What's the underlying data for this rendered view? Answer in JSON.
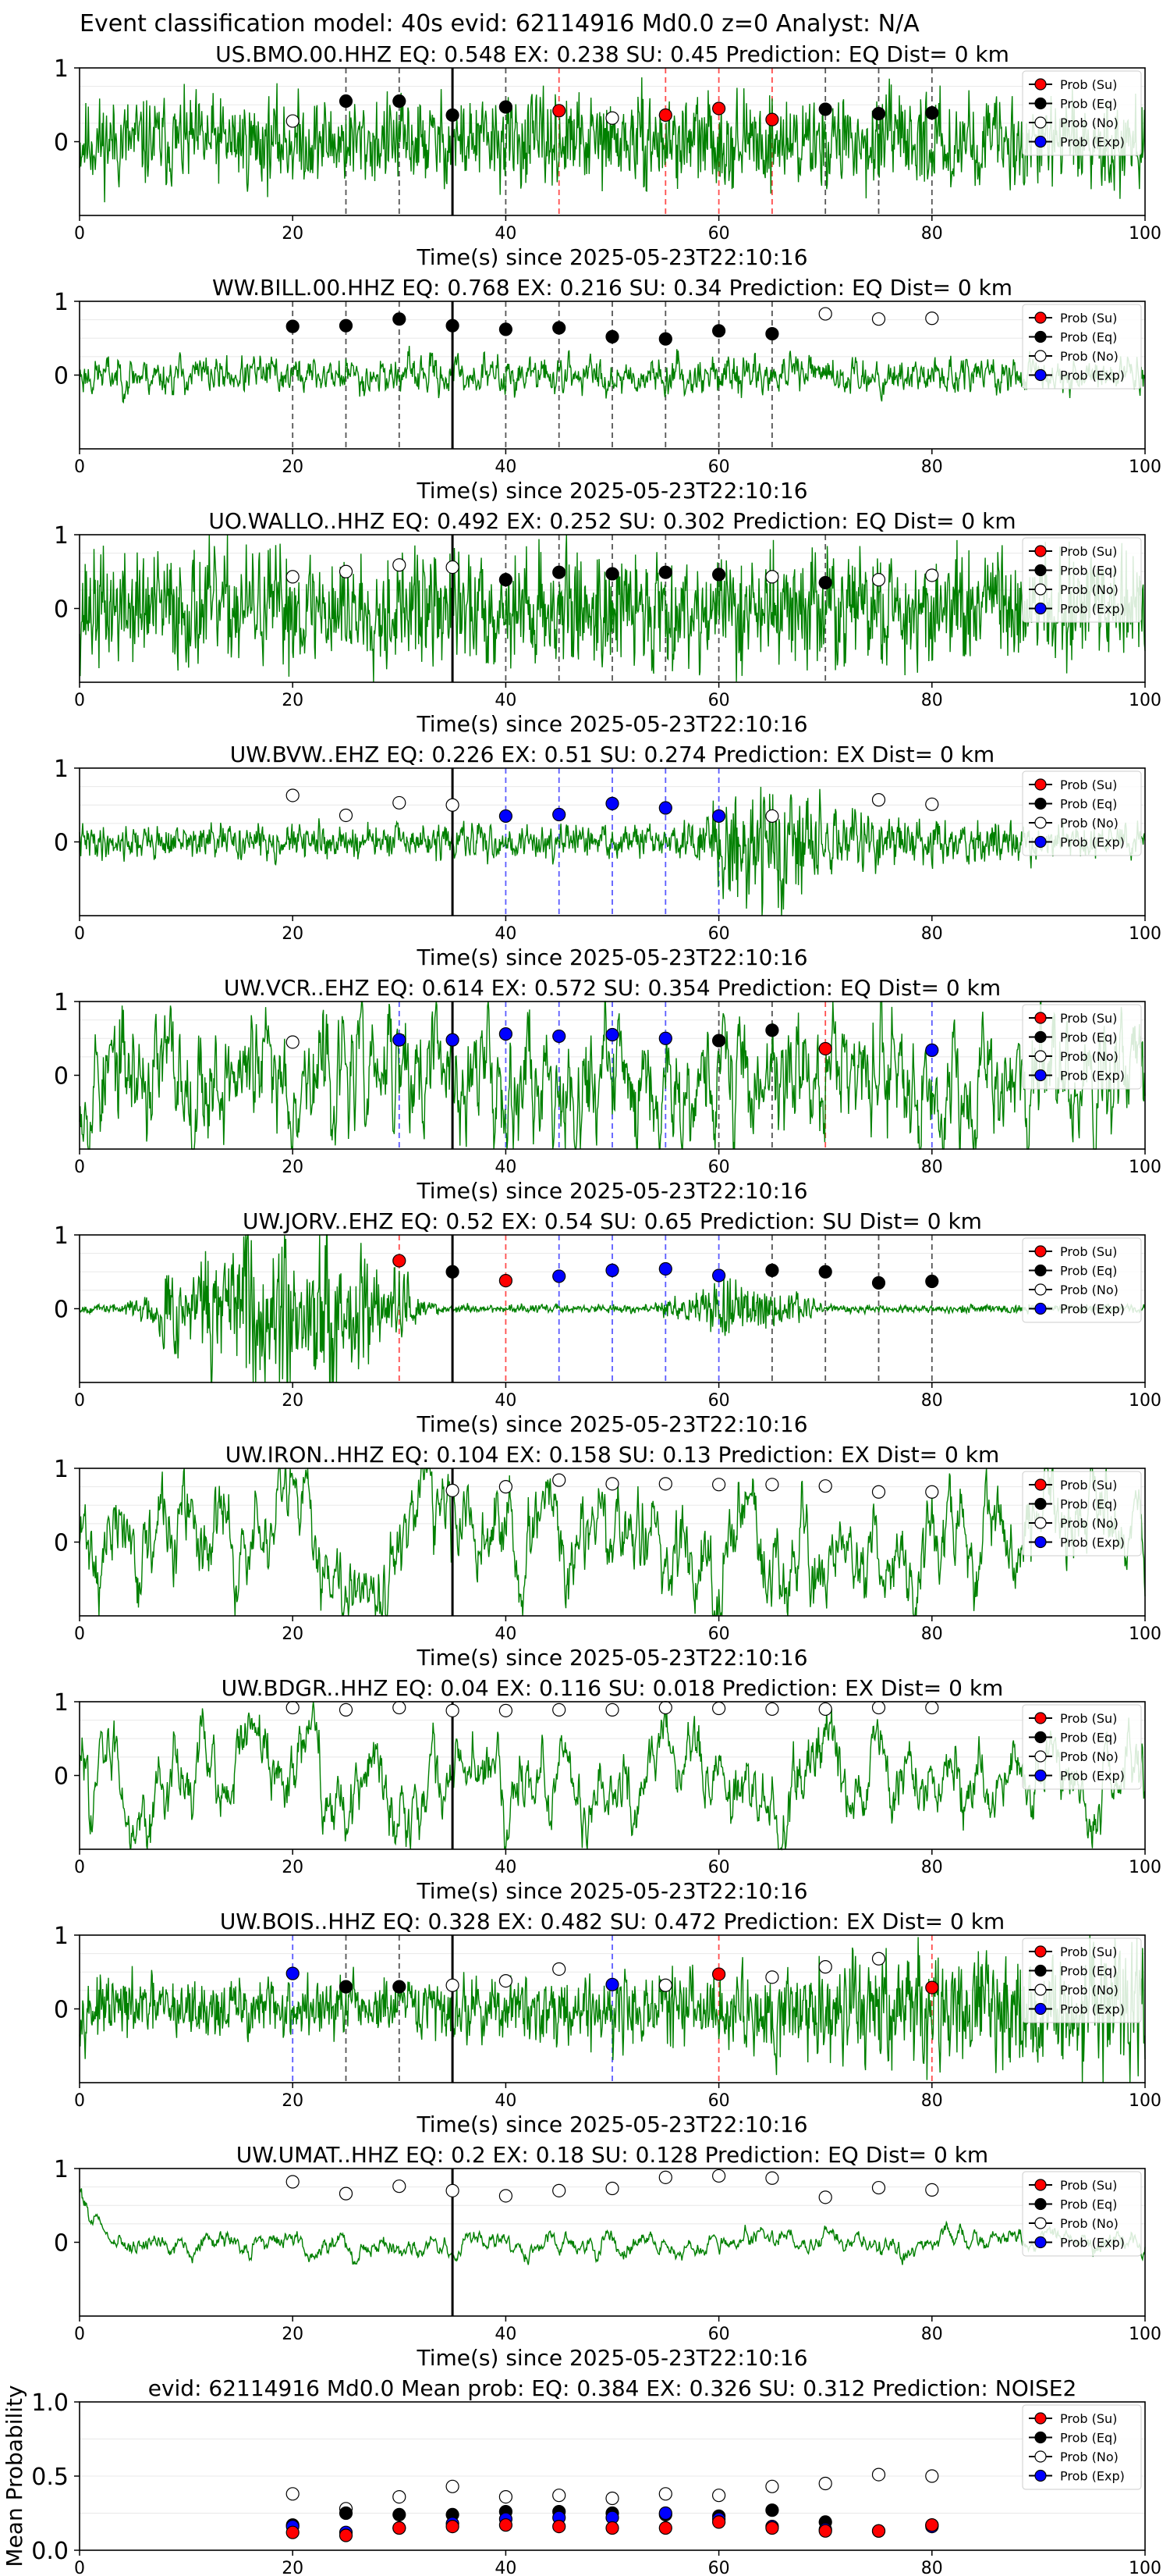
{
  "figure": {
    "title": "Event classification model: 40s evid: 62114916 Md0.0 z=0 Analyst: N/A"
  },
  "colors": {
    "trace": "#008000",
    "su": "#ff0000",
    "eq": "#000000",
    "no": "#ffffff",
    "exp": "#0000ff",
    "su_line": "#ff4d4d",
    "eq_line": "#555555",
    "exp_line": "#5b5bff",
    "origin_line": "#000000"
  },
  "legend": {
    "entries": [
      "Prob (Su)",
      "Prob (Eq)",
      "Prob (No)",
      "Prob (Exp)"
    ],
    "placement": "upper-right"
  },
  "chart_data": [
    {
      "type": "line",
      "title": "US.BMO.00.HHZ   EQ: 0.548  EX: 0.238  SU: 0.45   Prediction: EQ    Dist= 0 km",
      "xlabel": "Time(s) since 2025-05-23T22:10:16",
      "xlim": [
        0,
        100
      ],
      "ylim": [
        -1,
        1
      ],
      "xticks": [
        "0",
        "20",
        "40",
        "60",
        "80",
        "100"
      ],
      "yticks": [
        "1",
        "0"
      ],
      "origin_time": 35,
      "trace": {
        "amp": 0.32,
        "smooth": 0.25,
        "seed": 11,
        "envelope": "flat"
      },
      "points": [
        {
          "t": 20,
          "p": 0.28,
          "cls": "no"
        },
        {
          "t": 25,
          "p": 0.55,
          "cls": "eq"
        },
        {
          "t": 30,
          "p": 0.55,
          "cls": "eq"
        },
        {
          "t": 35,
          "p": 0.36,
          "cls": "eq"
        },
        {
          "t": 40,
          "p": 0.47,
          "cls": "eq"
        },
        {
          "t": 45,
          "p": 0.42,
          "cls": "su"
        },
        {
          "t": 50,
          "p": 0.32,
          "cls": "no"
        },
        {
          "t": 55,
          "p": 0.36,
          "cls": "su"
        },
        {
          "t": 60,
          "p": 0.45,
          "cls": "su"
        },
        {
          "t": 65,
          "p": 0.3,
          "cls": "su"
        },
        {
          "t": 70,
          "p": 0.44,
          "cls": "eq"
        },
        {
          "t": 75,
          "p": 0.38,
          "cls": "eq"
        },
        {
          "t": 80,
          "p": 0.39,
          "cls": "eq"
        }
      ]
    },
    {
      "type": "line",
      "title": "WW.BILL.00.HHZ   EQ: 0.768  EX: 0.216  SU: 0.34   Prediction: EQ    Dist= 0 km",
      "xlabel": "Time(s) since 2025-05-23T22:10:16",
      "xlim": [
        0,
        100
      ],
      "ylim": [
        -1,
        1
      ],
      "xticks": [
        "0",
        "20",
        "40",
        "60",
        "80",
        "100"
      ],
      "yticks": [
        "1",
        "0"
      ],
      "origin_time": 35,
      "trace": {
        "amp": 0.14,
        "smooth": 0.6,
        "seed": 23,
        "envelope": "flat"
      },
      "points": [
        {
          "t": 20,
          "p": 0.66,
          "cls": "eq"
        },
        {
          "t": 25,
          "p": 0.67,
          "cls": "eq"
        },
        {
          "t": 30,
          "p": 0.76,
          "cls": "eq"
        },
        {
          "t": 35,
          "p": 0.67,
          "cls": "eq"
        },
        {
          "t": 40,
          "p": 0.62,
          "cls": "eq"
        },
        {
          "t": 45,
          "p": 0.64,
          "cls": "eq"
        },
        {
          "t": 50,
          "p": 0.52,
          "cls": "eq"
        },
        {
          "t": 55,
          "p": 0.49,
          "cls": "eq"
        },
        {
          "t": 60,
          "p": 0.6,
          "cls": "eq"
        },
        {
          "t": 65,
          "p": 0.56,
          "cls": "eq"
        },
        {
          "t": 70,
          "p": 0.83,
          "cls": "no"
        },
        {
          "t": 75,
          "p": 0.76,
          "cls": "no"
        },
        {
          "t": 80,
          "p": 0.77,
          "cls": "no"
        }
      ]
    },
    {
      "type": "line",
      "title": "UO.WALLO..HHZ   EQ: 0.492  EX: 0.252  SU: 0.302   Prediction: EQ    Dist= 0 km",
      "xlabel": "Time(s) since 2025-05-23T22:10:16",
      "xlim": [
        0,
        100
      ],
      "ylim": [
        -1,
        1
      ],
      "xticks": [
        "0",
        "20",
        "40",
        "60",
        "80",
        "100"
      ],
      "yticks": [
        "1",
        "0"
      ],
      "origin_time": 35,
      "trace": {
        "amp": 0.42,
        "smooth": 0.2,
        "seed": 37,
        "envelope": "flat"
      },
      "points": [
        {
          "t": 20,
          "p": 0.43,
          "cls": "no"
        },
        {
          "t": 25,
          "p": 0.5,
          "cls": "no"
        },
        {
          "t": 30,
          "p": 0.59,
          "cls": "no"
        },
        {
          "t": 35,
          "p": 0.56,
          "cls": "no"
        },
        {
          "t": 40,
          "p": 0.39,
          "cls": "eq"
        },
        {
          "t": 45,
          "p": 0.49,
          "cls": "eq"
        },
        {
          "t": 50,
          "p": 0.47,
          "cls": "eq"
        },
        {
          "t": 55,
          "p": 0.49,
          "cls": "eq"
        },
        {
          "t": 60,
          "p": 0.46,
          "cls": "eq"
        },
        {
          "t": 65,
          "p": 0.43,
          "cls": "no"
        },
        {
          "t": 70,
          "p": 0.35,
          "cls": "eq"
        },
        {
          "t": 75,
          "p": 0.39,
          "cls": "no"
        },
        {
          "t": 80,
          "p": 0.45,
          "cls": "no"
        }
      ]
    },
    {
      "type": "line",
      "title": "UW.BVW..EHZ   EQ: 0.226  EX: 0.51  SU: 0.274   Prediction: EX    Dist= 0 km",
      "xlabel": "Time(s) since 2025-05-23T22:10:16",
      "xlim": [
        0,
        100
      ],
      "ylim": [
        -1,
        1
      ],
      "xticks": [
        "0",
        "20",
        "40",
        "60",
        "80",
        "100"
      ],
      "yticks": [
        "1",
        "0"
      ],
      "origin_time": 35,
      "trace": {
        "amp": 0.12,
        "smooth": 0.35,
        "seed": 41,
        "envelope": "burst",
        "burst_start": 57,
        "burst_peak": 64,
        "burst_gain": 5
      },
      "points": [
        {
          "t": 20,
          "p": 0.63,
          "cls": "no"
        },
        {
          "t": 25,
          "p": 0.36,
          "cls": "no"
        },
        {
          "t": 30,
          "p": 0.53,
          "cls": "no"
        },
        {
          "t": 35,
          "p": 0.5,
          "cls": "no"
        },
        {
          "t": 40,
          "p": 0.35,
          "cls": "exp"
        },
        {
          "t": 45,
          "p": 0.37,
          "cls": "exp"
        },
        {
          "t": 50,
          "p": 0.52,
          "cls": "exp"
        },
        {
          "t": 55,
          "p": 0.46,
          "cls": "exp"
        },
        {
          "t": 60,
          "p": 0.35,
          "cls": "exp"
        },
        {
          "t": 65,
          "p": 0.35,
          "cls": "no"
        },
        {
          "t": 75,
          "p": 0.57,
          "cls": "no"
        },
        {
          "t": 80,
          "p": 0.51,
          "cls": "no"
        }
      ]
    },
    {
      "type": "line",
      "title": "UW.VCR..EHZ   EQ: 0.614  EX: 0.572  SU: 0.354   Prediction: EQ    Dist= 0 km",
      "xlabel": "Time(s) since 2025-05-23T22:10:16",
      "xlim": [
        0,
        100
      ],
      "ylim": [
        -1,
        1
      ],
      "xticks": [
        "0",
        "20",
        "40",
        "60",
        "80",
        "100"
      ],
      "yticks": [
        "1",
        "0"
      ],
      "origin_time": 35,
      "trace": {
        "amp": 0.5,
        "smooth": 0.75,
        "seed": 53,
        "envelope": "flat"
      },
      "points": [
        {
          "t": 20,
          "p": 0.45,
          "cls": "no"
        },
        {
          "t": 30,
          "p": 0.48,
          "cls": "exp"
        },
        {
          "t": 35,
          "p": 0.48,
          "cls": "exp"
        },
        {
          "t": 40,
          "p": 0.56,
          "cls": "exp"
        },
        {
          "t": 45,
          "p": 0.53,
          "cls": "exp"
        },
        {
          "t": 50,
          "p": 0.55,
          "cls": "exp"
        },
        {
          "t": 55,
          "p": 0.5,
          "cls": "exp"
        },
        {
          "t": 60,
          "p": 0.47,
          "cls": "eq"
        },
        {
          "t": 65,
          "p": 0.61,
          "cls": "eq"
        },
        {
          "t": 70,
          "p": 0.36,
          "cls": "su"
        },
        {
          "t": 80,
          "p": 0.34,
          "cls": "exp"
        }
      ]
    },
    {
      "type": "line",
      "title": "UW.JORV..EHZ   EQ: 0.52  EX: 0.54  SU: 0.65   Prediction: SU    Dist= 0 km",
      "xlabel": "Time(s) since 2025-05-23T22:10:16",
      "xlim": [
        0,
        100
      ],
      "ylim": [
        -1,
        1
      ],
      "xticks": [
        "0",
        "20",
        "40",
        "60",
        "80",
        "100"
      ],
      "yticks": [
        "1",
        "0"
      ],
      "origin_time": 35,
      "trace": {
        "amp": 0.03,
        "smooth": 0.25,
        "seed": 67,
        "envelope": "jorv"
      },
      "points": [
        {
          "t": 30,
          "p": 0.65,
          "cls": "su"
        },
        {
          "t": 35,
          "p": 0.5,
          "cls": "eq"
        },
        {
          "t": 40,
          "p": 0.38,
          "cls": "su"
        },
        {
          "t": 45,
          "p": 0.44,
          "cls": "exp"
        },
        {
          "t": 50,
          "p": 0.52,
          "cls": "exp"
        },
        {
          "t": 55,
          "p": 0.54,
          "cls": "exp"
        },
        {
          "t": 60,
          "p": 0.45,
          "cls": "exp"
        },
        {
          "t": 65,
          "p": 0.52,
          "cls": "eq"
        },
        {
          "t": 70,
          "p": 0.5,
          "cls": "eq"
        },
        {
          "t": 75,
          "p": 0.35,
          "cls": "eq"
        },
        {
          "t": 80,
          "p": 0.37,
          "cls": "eq"
        }
      ]
    },
    {
      "type": "line",
      "title": "UW.IRON..HHZ   EQ: 0.104  EX: 0.158  SU: 0.13   Prediction: EX    Dist= 0 km",
      "xlabel": "Time(s) since 2025-05-23T22:10:16",
      "xlim": [
        0,
        100
      ],
      "ylim": [
        -1,
        1
      ],
      "xticks": [
        "0",
        "20",
        "40",
        "60",
        "80",
        "100"
      ],
      "yticks": [
        "1",
        "0"
      ],
      "origin_time": 35,
      "trace": {
        "amp": 0.5,
        "smooth": 0.9,
        "seed": 71,
        "envelope": "flat"
      },
      "points": [
        {
          "t": 35,
          "p": 0.7,
          "cls": "no"
        },
        {
          "t": 40,
          "p": 0.75,
          "cls": "no"
        },
        {
          "t": 45,
          "p": 0.84,
          "cls": "no"
        },
        {
          "t": 50,
          "p": 0.79,
          "cls": "no"
        },
        {
          "t": 55,
          "p": 0.79,
          "cls": "no"
        },
        {
          "t": 60,
          "p": 0.78,
          "cls": "no"
        },
        {
          "t": 65,
          "p": 0.78,
          "cls": "no"
        },
        {
          "t": 70,
          "p": 0.76,
          "cls": "no"
        },
        {
          "t": 75,
          "p": 0.68,
          "cls": "no"
        },
        {
          "t": 80,
          "p": 0.68,
          "cls": "no"
        }
      ]
    },
    {
      "type": "line",
      "title": "UW.BDGR..HHZ   EQ: 0.04  EX: 0.116  SU: 0.018   Prediction: EX    Dist= 0 km",
      "xlabel": "Time(s) since 2025-05-23T22:10:16",
      "xlim": [
        0,
        100
      ],
      "ylim": [
        -1,
        1
      ],
      "xticks": [
        "0",
        "20",
        "40",
        "60",
        "80",
        "100"
      ],
      "yticks": [
        "1",
        "0"
      ],
      "origin_time": 35,
      "trace": {
        "amp": 0.45,
        "smooth": 0.92,
        "seed": 83,
        "envelope": "flat"
      },
      "points": [
        {
          "t": 20,
          "p": 0.92,
          "cls": "no"
        },
        {
          "t": 25,
          "p": 0.89,
          "cls": "no"
        },
        {
          "t": 30,
          "p": 0.92,
          "cls": "no"
        },
        {
          "t": 35,
          "p": 0.88,
          "cls": "no"
        },
        {
          "t": 40,
          "p": 0.88,
          "cls": "no"
        },
        {
          "t": 45,
          "p": 0.89,
          "cls": "no"
        },
        {
          "t": 50,
          "p": 0.89,
          "cls": "no"
        },
        {
          "t": 55,
          "p": 0.92,
          "cls": "no"
        },
        {
          "t": 60,
          "p": 0.91,
          "cls": "no"
        },
        {
          "t": 65,
          "p": 0.9,
          "cls": "no"
        },
        {
          "t": 70,
          "p": 0.9,
          "cls": "no"
        },
        {
          "t": 75,
          "p": 0.92,
          "cls": "no"
        },
        {
          "t": 80,
          "p": 0.92,
          "cls": "no"
        }
      ]
    },
    {
      "type": "line",
      "title": "UW.BOIS..HHZ   EQ: 0.328  EX: 0.482  SU: 0.472   Prediction: EX    Dist= 0 km",
      "xlabel": "Time(s) since 2025-05-23T22:10:16",
      "xlim": [
        0,
        100
      ],
      "ylim": [
        -1,
        1
      ],
      "xticks": [
        "0",
        "20",
        "40",
        "60",
        "80",
        "100"
      ],
      "yticks": [
        "1",
        "0"
      ],
      "origin_time": 35,
      "trace": {
        "amp": 0.22,
        "smooth": 0.3,
        "seed": 97,
        "envelope": "ramp"
      },
      "points": [
        {
          "t": 20,
          "p": 0.48,
          "cls": "exp"
        },
        {
          "t": 25,
          "p": 0.3,
          "cls": "eq"
        },
        {
          "t": 30,
          "p": 0.3,
          "cls": "eq"
        },
        {
          "t": 35,
          "p": 0.32,
          "cls": "no"
        },
        {
          "t": 40,
          "p": 0.38,
          "cls": "no"
        },
        {
          "t": 45,
          "p": 0.54,
          "cls": "no"
        },
        {
          "t": 50,
          "p": 0.33,
          "cls": "exp"
        },
        {
          "t": 55,
          "p": 0.32,
          "cls": "no"
        },
        {
          "t": 60,
          "p": 0.47,
          "cls": "su"
        },
        {
          "t": 65,
          "p": 0.43,
          "cls": "no"
        },
        {
          "t": 70,
          "p": 0.57,
          "cls": "no"
        },
        {
          "t": 75,
          "p": 0.68,
          "cls": "no"
        },
        {
          "t": 80,
          "p": 0.29,
          "cls": "su"
        }
      ]
    },
    {
      "type": "line",
      "title": "UW.UMAT..HHZ   EQ: 0.2  EX: 0.18  SU: 0.128   Prediction: EQ    Dist= 0 km",
      "xlabel": "Time(s) since 2025-05-23T22:10:16",
      "xlim": [
        0,
        100
      ],
      "ylim": [
        -1,
        1
      ],
      "xticks": [
        "0",
        "20",
        "40",
        "60",
        "80",
        "100"
      ],
      "yticks": [
        "1",
        "0"
      ],
      "origin_time": 35,
      "trace": {
        "amp": 0.12,
        "smooth": 0.92,
        "seed": 101,
        "envelope": "umat"
      },
      "points": [
        {
          "t": 20,
          "p": 0.82,
          "cls": "no"
        },
        {
          "t": 25,
          "p": 0.66,
          "cls": "no"
        },
        {
          "t": 30,
          "p": 0.76,
          "cls": "no"
        },
        {
          "t": 35,
          "p": 0.7,
          "cls": "no"
        },
        {
          "t": 40,
          "p": 0.63,
          "cls": "no"
        },
        {
          "t": 45,
          "p": 0.7,
          "cls": "no"
        },
        {
          "t": 50,
          "p": 0.73,
          "cls": "no"
        },
        {
          "t": 55,
          "p": 0.88,
          "cls": "no"
        },
        {
          "t": 60,
          "p": 0.9,
          "cls": "no"
        },
        {
          "t": 65,
          "p": 0.87,
          "cls": "no"
        },
        {
          "t": 70,
          "p": 0.61,
          "cls": "no"
        },
        {
          "t": 75,
          "p": 0.74,
          "cls": "no"
        },
        {
          "t": 80,
          "p": 0.71,
          "cls": "no"
        }
      ]
    },
    {
      "type": "scatter",
      "title": "evid: 62114916  Md0.0   Mean prob:   EQ: 0.384  EX: 0.326  SU: 0.312   Prediction: NOISE2",
      "ylabel": "Mean Probability",
      "xlim": [
        0,
        100
      ],
      "ylim": [
        0,
        1
      ],
      "xticks": [
        "0",
        "20",
        "40",
        "60",
        "80",
        "100"
      ],
      "yticks": [
        "1.0",
        "0.5",
        "0.0"
      ],
      "series": [
        {
          "name": "Prob (No)",
          "cls": "no",
          "x": [
            20,
            25,
            30,
            35,
            40,
            45,
            50,
            55,
            60,
            65,
            70,
            75,
            80
          ],
          "y": [
            0.38,
            0.28,
            0.36,
            0.43,
            0.36,
            0.37,
            0.35,
            0.38,
            0.37,
            0.43,
            0.45,
            0.51,
            0.5
          ]
        },
        {
          "name": "Prob (Eq)",
          "cls": "eq",
          "x": [
            20,
            25,
            30,
            35,
            40,
            45,
            50,
            55,
            60,
            65,
            70,
            75,
            80
          ],
          "y": [
            0.17,
            0.25,
            0.24,
            0.24,
            0.26,
            0.26,
            0.25,
            0.24,
            0.23,
            0.27,
            0.19,
            0.13,
            0.17
          ]
        },
        {
          "name": "Prob (Exp)",
          "cls": "exp",
          "x": [
            20,
            25,
            30,
            35,
            40,
            45,
            50,
            55,
            60,
            65,
            70,
            75,
            80
          ],
          "y": [
            0.16,
            0.12,
            0.15,
            0.18,
            0.21,
            0.22,
            0.22,
            0.25,
            0.21,
            0.16,
            0.14,
            0.13,
            0.16
          ]
        },
        {
          "name": "Prob (Su)",
          "cls": "su",
          "x": [
            20,
            25,
            30,
            35,
            40,
            45,
            50,
            55,
            60,
            65,
            70,
            75,
            80
          ],
          "y": [
            0.12,
            0.1,
            0.15,
            0.16,
            0.17,
            0.16,
            0.15,
            0.15,
            0.19,
            0.15,
            0.13,
            0.13,
            0.17
          ]
        }
      ]
    }
  ]
}
